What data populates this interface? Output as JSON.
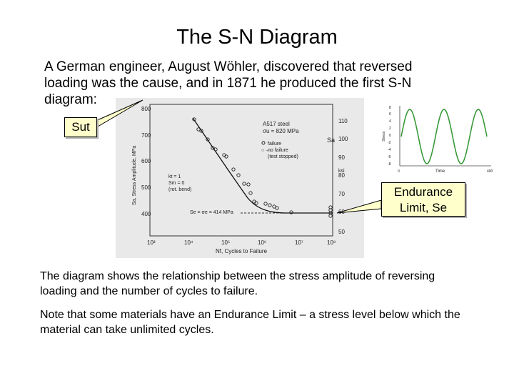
{
  "slide": {
    "title": "The S-N Diagram",
    "intro": "A German engineer, August Wöhler, discovered that reversed loading was the cause, and in 1871 he produced the first S-N diagram:",
    "paragraph1": "The diagram shows the relationship between the stress amplitude of reversing loading and the number of cycles to failure.",
    "paragraph2": "Note that some materials have an Endurance Limit – a stress level below which the material can take unlimited cycles."
  },
  "callouts": {
    "sut": "Sut",
    "endurance_line1": "Endurance",
    "endurance_line2": "Limit, Se"
  },
  "sn_figure": {
    "left_axis_ticks": [
      "800",
      "700",
      "600",
      "500",
      "400"
    ],
    "left_axis_label": "Sa, Stress Amplitude, MPa",
    "right_axis_ticks": [
      "110",
      "100",
      "90",
      "80",
      "70",
      "60",
      "50"
    ],
    "right_axis_unit": "ksi",
    "right_axis_symbol": "Sa",
    "x_axis_ticks": [
      "10³",
      "10⁴",
      "10⁵",
      "10⁶",
      "10⁷",
      "10⁸"
    ],
    "x_axis_label": "Nf, Cycles to Failure",
    "material_line1": "A517 steel",
    "material_line2": "σu = 820 MPa",
    "legend_failure": "failure",
    "legend_no_failure": "no failure",
    "legend_test_stopped": "(test stopped)",
    "k_line1": "kt = 1",
    "k_line2": "Sm = 0",
    "k_line3": "(rot. bend)",
    "se_label": "Se = σe = 414 MPa"
  },
  "stress_inset": {
    "y_ticks": [
      "8",
      "6",
      "4",
      "2",
      "0",
      "-2",
      "-4",
      "-6",
      "-8"
    ],
    "y_label": "Stress",
    "x_ticks": [
      "0",
      "Time",
      "400"
    ]
  },
  "colors": {
    "callout_fill": "#ffffcc",
    "sine": "#3a9a3a",
    "figure_bg": "#e9e9e9"
  }
}
